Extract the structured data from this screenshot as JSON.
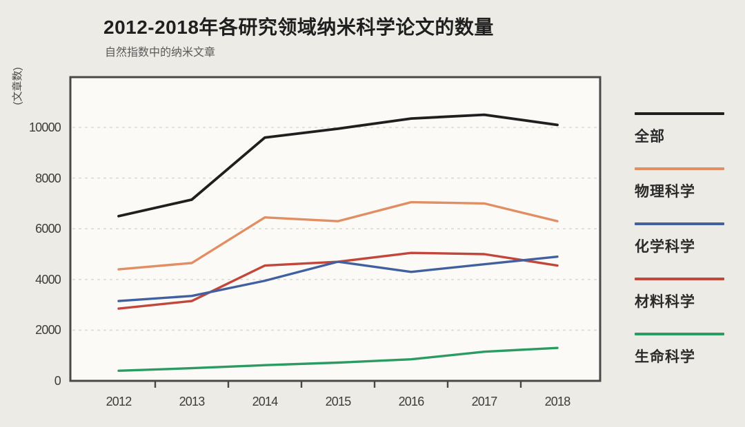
{
  "header": {
    "title": "2012-2018年各研究领域纳米科学论文的数量",
    "subtitle": "自然指数中的纳米文章"
  },
  "chart_data": {
    "type": "line",
    "title": "2012-2018年各研究领域纳米科学论文的数量",
    "subtitle": "自然指数中的纳米文章",
    "ylabel": "(文章数)",
    "xlabel": "",
    "categories": [
      2012,
      2013,
      2014,
      2015,
      2016,
      2017,
      2018
    ],
    "series": [
      {
        "id": "all",
        "name": "全部",
        "color": "#1F1F1F",
        "values": [
          6500,
          7150,
          9600,
          9950,
          10350,
          10500,
          10100
        ]
      },
      {
        "id": "physical-sciences",
        "name": "物理科学",
        "color": "#E28E63",
        "values": [
          4400,
          4650,
          6450,
          6300,
          7050,
          7000,
          6300
        ]
      },
      {
        "id": "chemical-sciences",
        "name": "化学科学",
        "color": "#41609F",
        "values": [
          3150,
          3350,
          3950,
          4700,
          4300,
          4600,
          4900
        ]
      },
      {
        "id": "materials-science",
        "name": "材料科学",
        "color": "#C2473A",
        "values": [
          2850,
          3150,
          4550,
          4700,
          5050,
          5000,
          4550
        ]
      },
      {
        "id": "life-sciences",
        "name": "生命科学",
        "color": "#2A9C62",
        "values": [
          400,
          500,
          620,
          720,
          850,
          1150,
          1300
        ]
      }
    ],
    "yticks": [
      0,
      2000,
      4000,
      6000,
      8000,
      10000
    ],
    "ylim": [
      0,
      11950
    ],
    "grid": "horizontal-dashed",
    "legend_position": "right"
  },
  "style": {
    "background": "#ECEBE5",
    "plot_fill": "#FBFAF7",
    "plot_border": "#484848",
    "grid_color": "#DBD9D2",
    "tick_color": "#484848",
    "text_color": "#3C3C3C"
  }
}
